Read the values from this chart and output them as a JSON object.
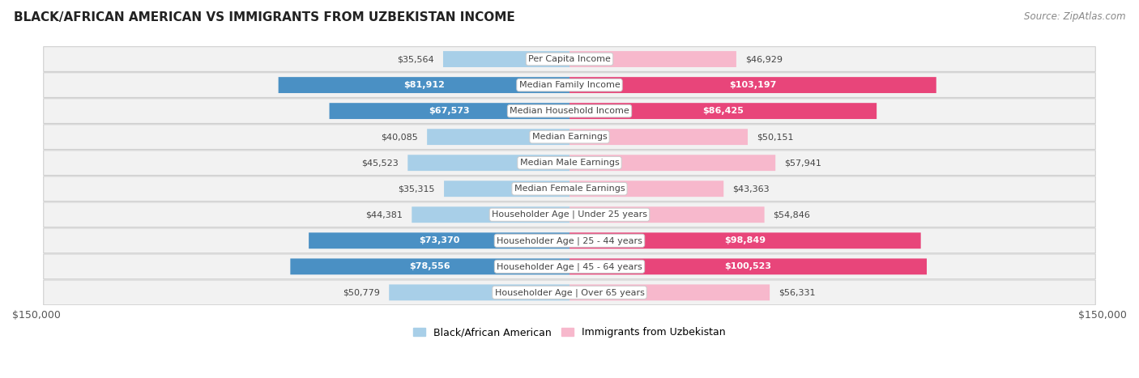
{
  "title": "BLACK/AFRICAN AMERICAN VS IMMIGRANTS FROM UZBEKISTAN INCOME",
  "source": "Source: ZipAtlas.com",
  "categories": [
    "Per Capita Income",
    "Median Family Income",
    "Median Household Income",
    "Median Earnings",
    "Median Male Earnings",
    "Median Female Earnings",
    "Householder Age | Under 25 years",
    "Householder Age | 25 - 44 years",
    "Householder Age | 45 - 64 years",
    "Householder Age | Over 65 years"
  ],
  "black_values": [
    35564,
    81912,
    67573,
    40085,
    45523,
    35315,
    44381,
    73370,
    78556,
    50779
  ],
  "uzbek_values": [
    46929,
    103197,
    86425,
    50151,
    57941,
    43363,
    54846,
    98849,
    100523,
    56331
  ],
  "black_labels": [
    "$35,564",
    "$81,912",
    "$67,573",
    "$40,085",
    "$45,523",
    "$35,315",
    "$44,381",
    "$73,370",
    "$78,556",
    "$50,779"
  ],
  "uzbek_labels": [
    "$46,929",
    "$103,197",
    "$86,425",
    "$50,151",
    "$57,941",
    "$43,363",
    "$54,846",
    "$98,849",
    "$100,523",
    "$56,331"
  ],
  "black_light": "#a8cfe8",
  "black_dark": "#4a90c4",
  "uzbek_light": "#f7b8cc",
  "uzbek_dark": "#e8457a",
  "max_value": 150000,
  "legend_black": "Black/African American",
  "legend_uzbek": "Immigrants from Uzbekistan",
  "black_threshold": 60000,
  "uzbek_threshold": 85000
}
